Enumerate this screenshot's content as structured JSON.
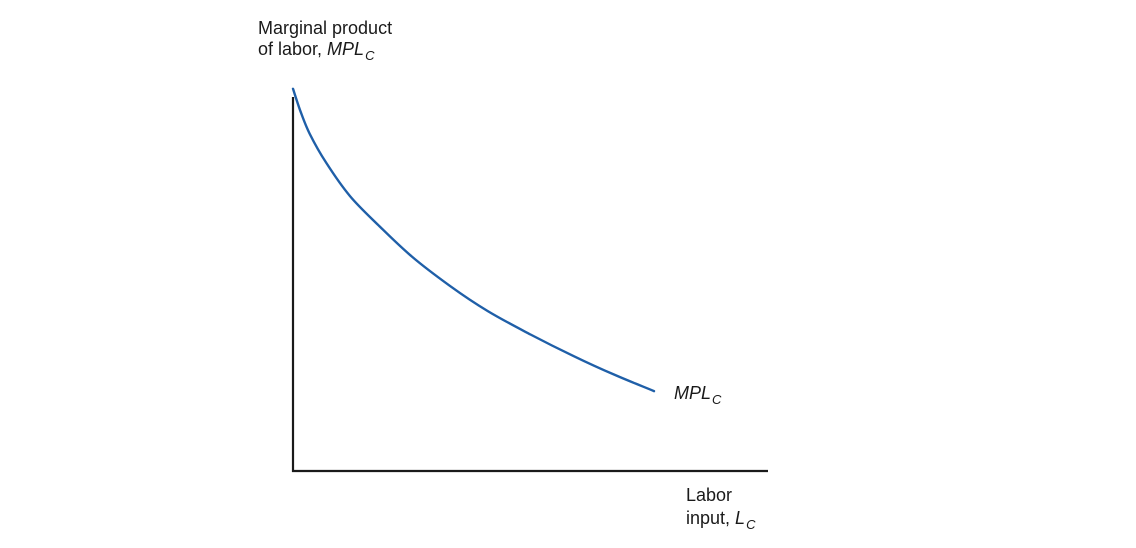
{
  "chart_data": {
    "type": "line",
    "title": "",
    "ylabel": {
      "line1": "Marginal product",
      "line2_prefix": "of labor, ",
      "var_main": "MPL",
      "var_sub": "C"
    },
    "xlabel": {
      "line1": "Labor",
      "line2_prefix": "input, ",
      "var_main": "L",
      "var_sub": "C"
    },
    "xlim": [
      0,
      10
    ],
    "ylim": [
      0,
      10
    ],
    "grid": false,
    "series": [
      {
        "name": "MPLC",
        "label_main": "MPL",
        "label_sub": "C",
        "color": "#1f5fa8",
        "x": [
          0,
          0.15,
          0.35,
          0.7,
          1.2,
          1.8,
          2.5,
          3.3,
          4.1,
          5.0,
          5.9,
          6.8,
          7.6
        ],
        "y": [
          9.8,
          9.25,
          8.65,
          7.9,
          7.05,
          6.3,
          5.5,
          4.75,
          4.1,
          3.5,
          2.95,
          2.45,
          2.05
        ]
      }
    ]
  }
}
